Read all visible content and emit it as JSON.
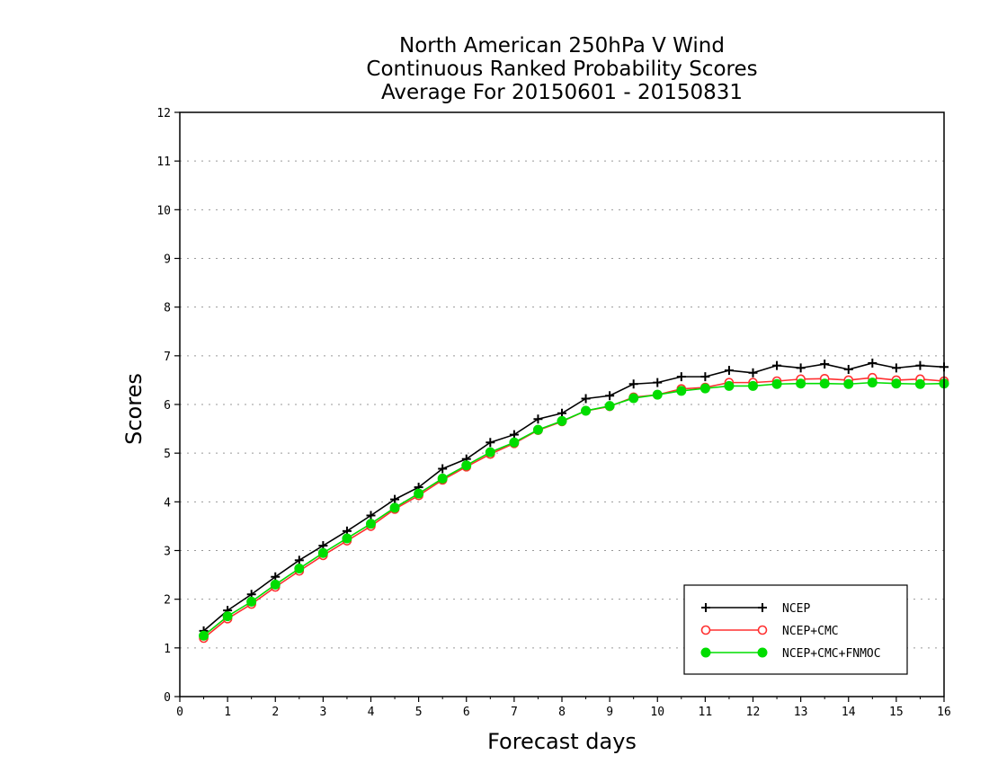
{
  "chart_data": {
    "type": "line",
    "title": [
      "North American 250hPa V Wind",
      "Continuous Ranked Probability Scores",
      "Average For 20150601 - 20150831"
    ],
    "xlabel": "Forecast days",
    "ylabel": "Scores",
    "xlim": [
      0,
      16
    ],
    "ylim": [
      0,
      12
    ],
    "x_ticks": [
      "0",
      "1",
      "2",
      "3",
      "4",
      "5",
      "6",
      "7",
      "8",
      "9",
      "10",
      "11",
      "12",
      "13",
      "14",
      "15",
      "16"
    ],
    "y_ticks": [
      "0",
      "1",
      "2",
      "3",
      "4",
      "5",
      "6",
      "7",
      "8",
      "9",
      "10",
      "11",
      "12"
    ],
    "grid": true,
    "legend_position": "bottom-right",
    "x": [
      0.5,
      1,
      1.5,
      2,
      2.5,
      3,
      3.5,
      4,
      4.5,
      5,
      5.5,
      6,
      6.5,
      7,
      7.5,
      8,
      8.5,
      9,
      9.5,
      10,
      10.5,
      11,
      11.5,
      12,
      12.5,
      13,
      13.5,
      14,
      14.5,
      15,
      15.5,
      16
    ],
    "series": [
      {
        "name": "NCEP",
        "color": "#000000",
        "marker": "plus",
        "values": [
          1.35,
          1.77,
          2.1,
          2.46,
          2.8,
          3.1,
          3.4,
          3.72,
          4.05,
          4.3,
          4.68,
          4.88,
          5.22,
          5.38,
          5.7,
          5.82,
          6.12,
          6.18,
          6.42,
          6.45,
          6.57,
          6.57,
          6.7,
          6.65,
          6.8,
          6.75,
          6.83,
          6.72,
          6.85,
          6.75,
          6.8,
          6.77
        ]
      },
      {
        "name": "NCEP+CMC",
        "color": "#ff3030",
        "marker": "open-circle",
        "values": [
          1.2,
          1.6,
          1.9,
          2.25,
          2.58,
          2.9,
          3.2,
          3.5,
          3.85,
          4.13,
          4.45,
          4.72,
          4.98,
          5.2,
          5.47,
          5.65,
          5.87,
          5.96,
          6.15,
          6.2,
          6.32,
          6.35,
          6.45,
          6.45,
          6.48,
          6.52,
          6.53,
          6.5,
          6.55,
          6.5,
          6.52,
          6.48
        ]
      },
      {
        "name": "NCEP+CMC+FNMOC",
        "color": "#00dd00",
        "marker": "filled-circle",
        "values": [
          1.25,
          1.65,
          1.95,
          2.3,
          2.63,
          2.95,
          3.25,
          3.55,
          3.88,
          4.17,
          4.48,
          4.75,
          5.02,
          5.22,
          5.48,
          5.66,
          5.87,
          5.97,
          6.13,
          6.2,
          6.28,
          6.33,
          6.38,
          6.38,
          6.42,
          6.43,
          6.43,
          6.42,
          6.45,
          6.43,
          6.42,
          6.43
        ]
      }
    ]
  }
}
